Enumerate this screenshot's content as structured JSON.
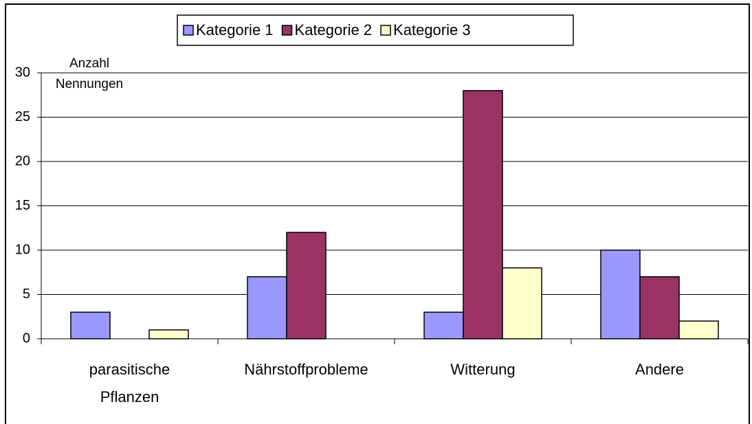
{
  "chart_data": {
    "type": "bar",
    "categories": [
      "parasitische\nPflanzen",
      "Nährstoffprobleme",
      "Witterung",
      "Andere"
    ],
    "series": [
      {
        "name": "Kategorie 1",
        "color": "#9999ff",
        "values": [
          3,
          7,
          3,
          10
        ]
      },
      {
        "name": "Kategorie 2",
        "color": "#993366",
        "values": [
          0,
          12,
          28,
          7
        ]
      },
      {
        "name": "Kategorie 3",
        "color": "#ffffcc",
        "values": [
          1,
          0,
          8,
          2
        ]
      }
    ],
    "y_label": "Anzahl\nNennungen",
    "ylim": [
      0,
      30
    ],
    "yticks": [
      0,
      5,
      10,
      15,
      20,
      25,
      30
    ],
    "grid": true,
    "legend": "top"
  }
}
